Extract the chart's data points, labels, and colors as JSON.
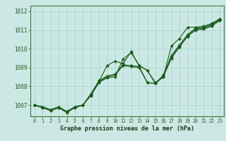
{
  "title": "Graphe pression niveau de la mer (hPa)",
  "bg_color": "#cce8e4",
  "grid_color": "#aad4ce",
  "line_color": "#1a5c1a",
  "marker_color": "#1a5c1a",
  "xlim": [
    -0.5,
    23.5
  ],
  "ylim": [
    1006.4,
    1012.3
  ],
  "yticks": [
    1007,
    1008,
    1009,
    1010,
    1011,
    1012
  ],
  "xticks": [
    0,
    1,
    2,
    3,
    4,
    5,
    6,
    7,
    8,
    9,
    10,
    11,
    12,
    13,
    14,
    15,
    16,
    17,
    18,
    19,
    20,
    21,
    22,
    23
  ],
  "series": [
    [
      1007.0,
      1006.9,
      1006.75,
      1006.9,
      1006.65,
      1006.9,
      1007.0,
      1007.55,
      1008.25,
      1009.1,
      1009.35,
      1009.2,
      1009.85,
      1009.1,
      1008.85,
      1008.2,
      1008.5,
      1010.15,
      1010.55,
      1011.15,
      1011.15,
      1011.2,
      1011.35,
      1011.6
    ],
    [
      1007.0,
      1006.9,
      1006.75,
      1006.9,
      1006.65,
      1006.9,
      1007.0,
      1007.6,
      1008.3,
      1008.55,
      1008.65,
      1009.15,
      1009.1,
      1009.05,
      1008.2,
      1008.15,
      1008.6,
      1009.65,
      1010.2,
      1010.75,
      1011.1,
      1011.15,
      1011.3,
      1011.6
    ],
    [
      1007.0,
      1006.9,
      1006.75,
      1006.9,
      1006.65,
      1006.9,
      1007.0,
      1007.55,
      1008.25,
      1008.5,
      1008.6,
      1009.1,
      1009.05,
      1009.0,
      1008.2,
      1008.15,
      1008.55,
      1009.55,
      1010.15,
      1010.7,
      1011.05,
      1011.1,
      1011.25,
      1011.55
    ],
    [
      1007.0,
      1006.85,
      1006.7,
      1006.85,
      1006.6,
      1006.85,
      1007.0,
      1007.5,
      1008.2,
      1008.45,
      1008.5,
      1009.45,
      1009.8,
      1009.1,
      1008.85,
      1008.15,
      1008.5,
      1009.5,
      1010.1,
      1010.65,
      1011.0,
      1011.05,
      1011.2,
      1011.5
    ]
  ]
}
